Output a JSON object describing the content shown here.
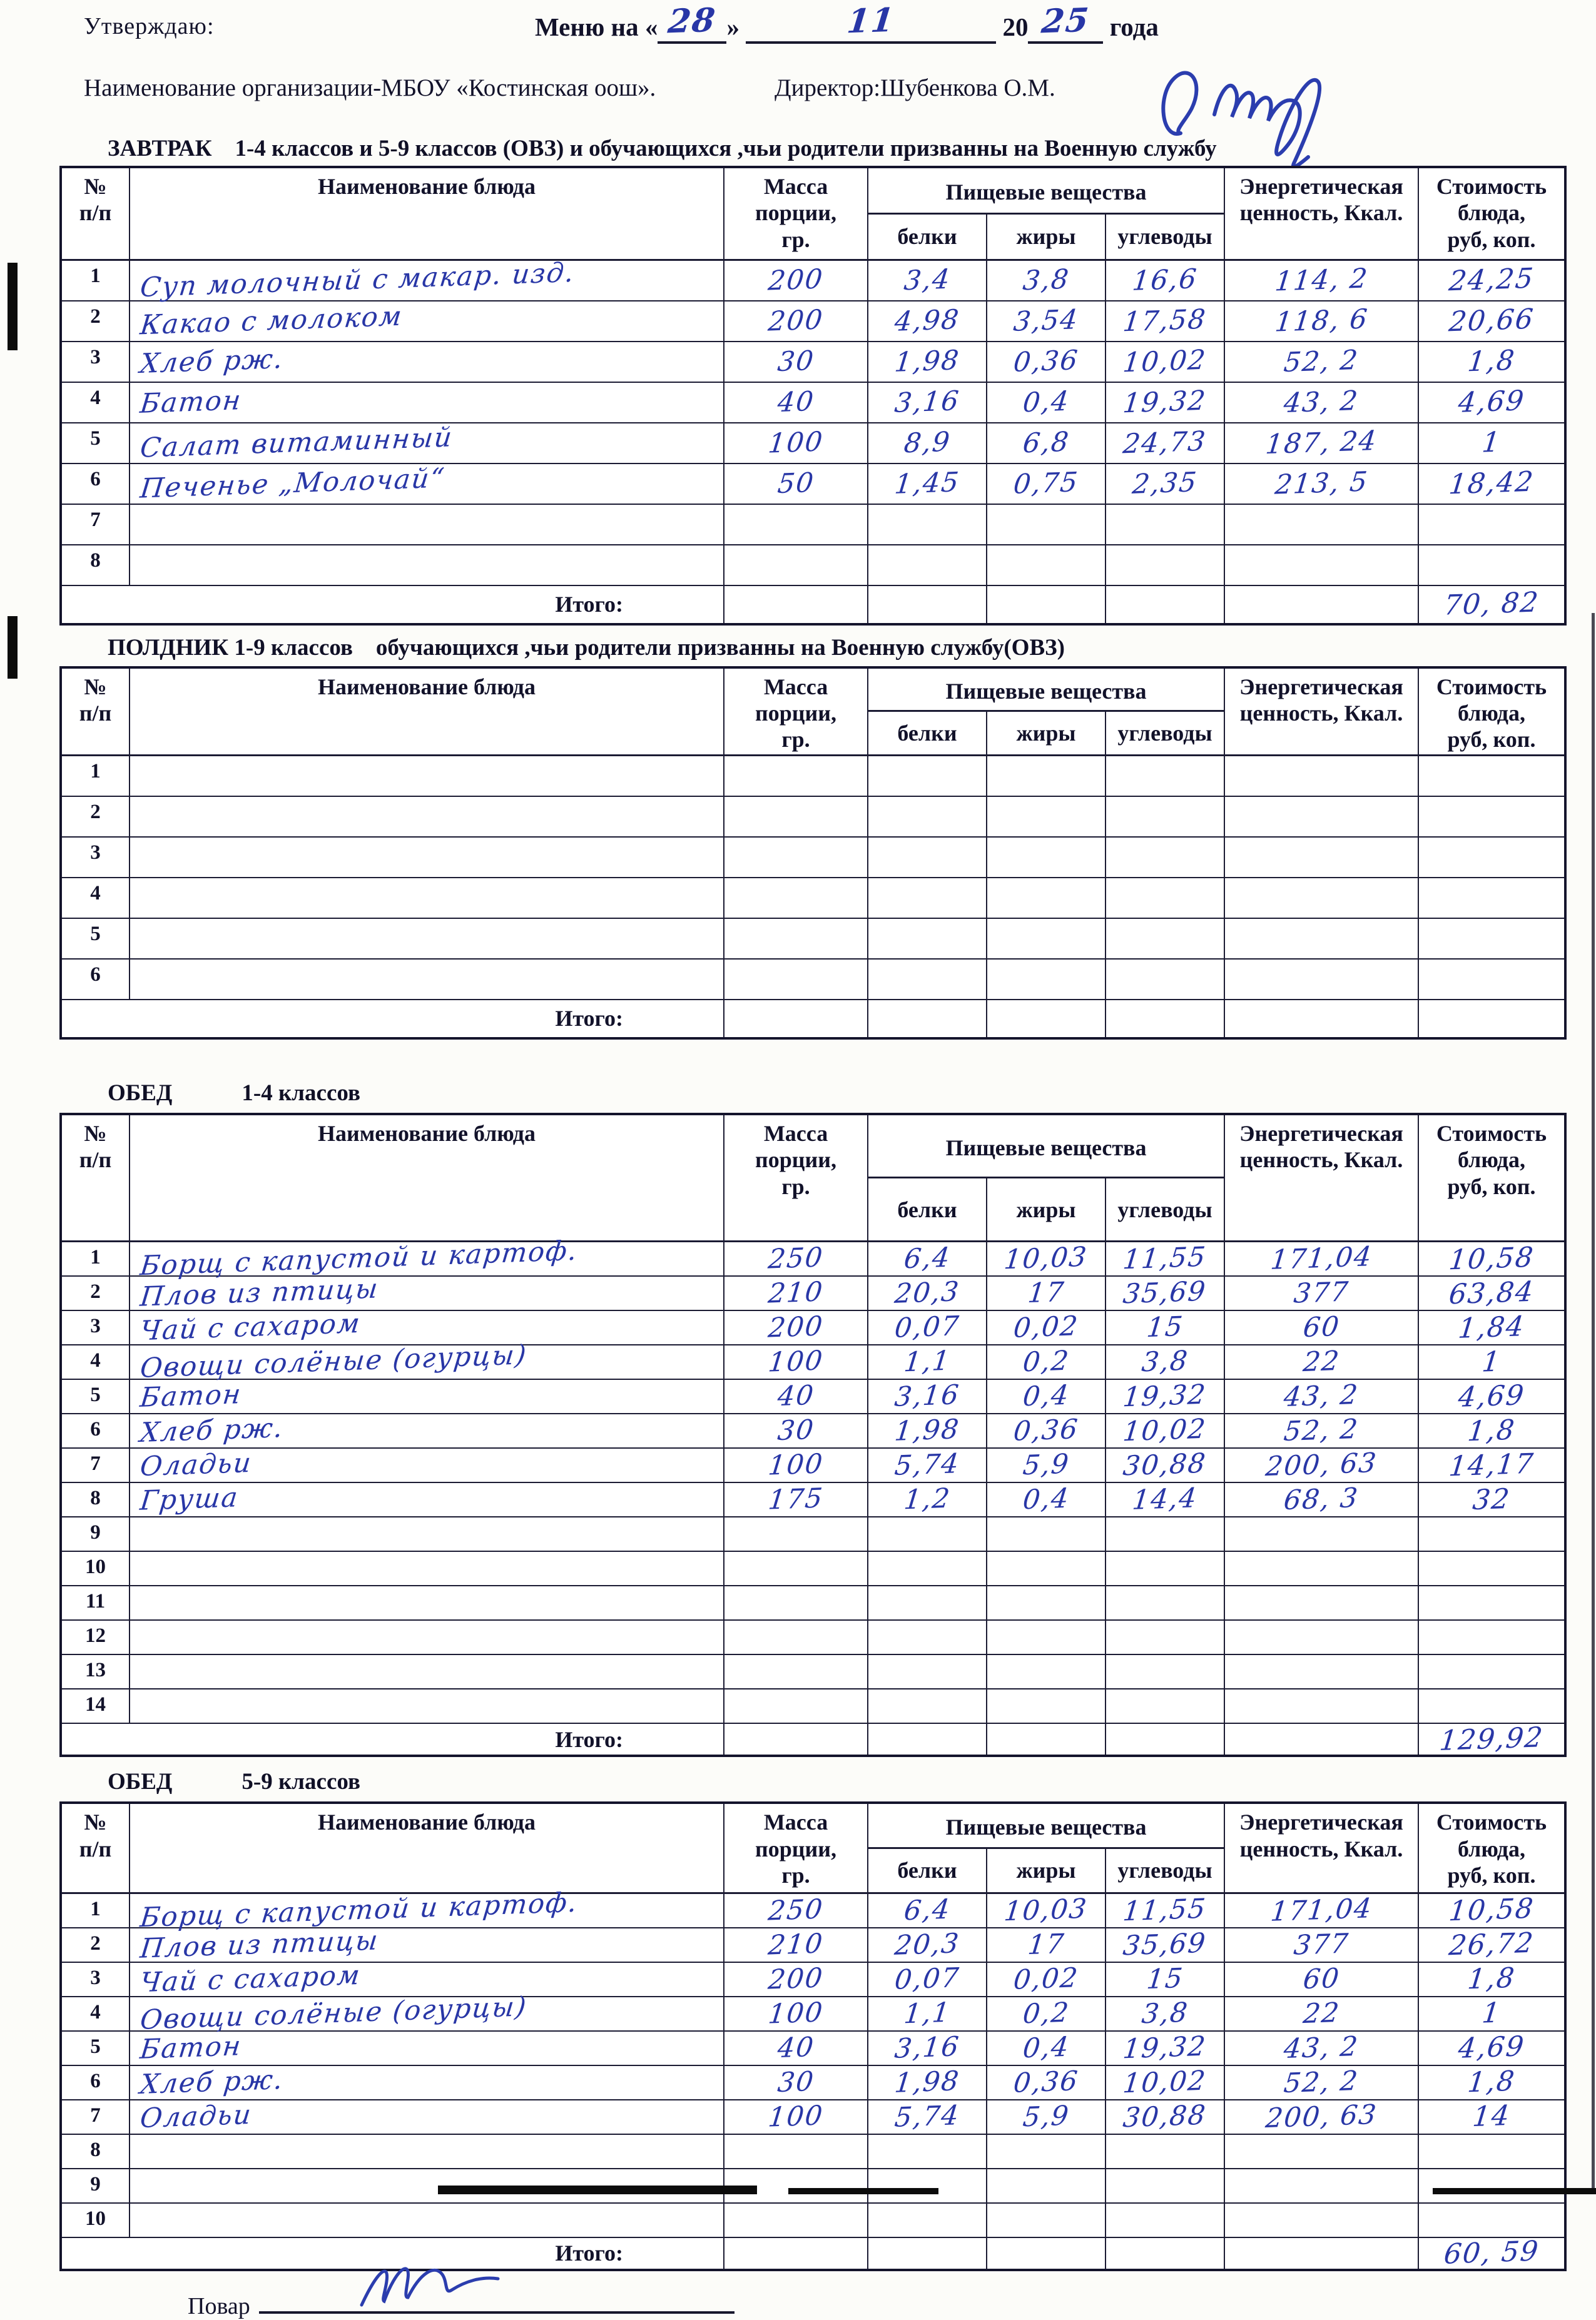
{
  "header": {
    "approve_label": "Утверждаю:",
    "menu": {
      "prefix": "Меню на",
      "open": "«",
      "day": "28",
      "close": "»",
      "month": "11",
      "year_prefix": "20",
      "year": "25",
      "suffix": "года"
    },
    "org_line": "Наименование организации-МБОУ «Костинская оош».",
    "director_label": "Директор:Шубенкова О.М."
  },
  "columns": {
    "num": "№\nп/п",
    "dish": "Наименование блюда",
    "mass": "Масса\nпорции,\nгр.",
    "nutrients": "Пищевые вещества",
    "protein": "белки",
    "fat": "жиры",
    "carbs": "углеводы",
    "energy": "Энергетическая\nценность, Ккал.",
    "cost": "Стоимость\nблюда,\nруб, коп."
  },
  "tables": [
    {
      "caption": "ЗАВТРАК    1-4 классов и 5-9 классов (ОВЗ) и обучающихся ,чьи родители призванны на Военную службу",
      "total_label": "Итого:",
      "total": "70, 82",
      "rows": [
        {
          "num": "1",
          "dish": "Суп молочный с макар. изд.",
          "mass": "200",
          "protein": "3,4",
          "fat": "3,8",
          "carbs": "16,6",
          "energy": "114, 2",
          "cost": "24,25"
        },
        {
          "num": "2",
          "dish": "Какао с молоком",
          "mass": "200",
          "protein": "4,98",
          "fat": "3,54",
          "carbs": "17,58",
          "energy": "118, 6",
          "cost": "20,66"
        },
        {
          "num": "3",
          "dish": "Хлеб рж.",
          "mass": "30",
          "protein": "1,98",
          "fat": "0,36",
          "carbs": "10,02",
          "energy": "52, 2",
          "cost": "1,8"
        },
        {
          "num": "4",
          "dish": "Батон",
          "mass": "40",
          "protein": "3,16",
          "fat": "0,4",
          "carbs": "19,32",
          "energy": "43, 2",
          "cost": "4,69"
        },
        {
          "num": "5",
          "dish": "Салат витаминный",
          "mass": "100",
          "protein": "8,9",
          "fat": "6,8",
          "carbs": "24,73",
          "energy": "187, 24",
          "cost": "1"
        },
        {
          "num": "6",
          "dish": "Печенье „Молочай“",
          "mass": "50",
          "protein": "1,45",
          "fat": "0,75",
          "carbs": "2,35",
          "energy": "213, 5",
          "cost": "18,42"
        },
        {
          "num": "7",
          "dish": "",
          "mass": "",
          "protein": "",
          "fat": "",
          "carbs": "",
          "energy": "",
          "cost": ""
        },
        {
          "num": "8",
          "dish": "",
          "mass": "",
          "protein": "",
          "fat": "",
          "carbs": "",
          "energy": "",
          "cost": ""
        }
      ]
    },
    {
      "caption": "ПОЛДНИК 1-9 классов    обучающихся ,чьи родители призванны на Военную службу(ОВЗ)",
      "total_label": "Итого:",
      "total": "",
      "rows": [
        {
          "num": "1",
          "dish": "",
          "mass": "",
          "protein": "",
          "fat": "",
          "carbs": "",
          "energy": "",
          "cost": ""
        },
        {
          "num": "2",
          "dish": "",
          "mass": "",
          "protein": "",
          "fat": "",
          "carbs": "",
          "energy": "",
          "cost": ""
        },
        {
          "num": "3",
          "dish": "",
          "mass": "",
          "protein": "",
          "fat": "",
          "carbs": "",
          "energy": "",
          "cost": ""
        },
        {
          "num": "4",
          "dish": "",
          "mass": "",
          "protein": "",
          "fat": "",
          "carbs": "",
          "energy": "",
          "cost": ""
        },
        {
          "num": "5",
          "dish": "",
          "mass": "",
          "protein": "",
          "fat": "",
          "carbs": "",
          "energy": "",
          "cost": ""
        },
        {
          "num": "6",
          "dish": "",
          "mass": "",
          "protein": "",
          "fat": "",
          "carbs": "",
          "energy": "",
          "cost": ""
        }
      ]
    },
    {
      "caption": "ОБЕД            1-4 классов",
      "total_label": "Итого:",
      "total": "129,92",
      "rows": [
        {
          "num": "1",
          "dish": "Борщ с капустой и картоф.",
          "mass": "250",
          "protein": "6,4",
          "fat": "10,03",
          "carbs": "11,55",
          "energy": "171,04",
          "cost": "10,58"
        },
        {
          "num": "2",
          "dish": "Плов из птицы",
          "mass": "210",
          "protein": "20,3",
          "fat": "17",
          "carbs": "35,69",
          "energy": "377",
          "cost": "63,84"
        },
        {
          "num": "3",
          "dish": "Чай с сахаром",
          "mass": "200",
          "protein": "0,07",
          "fat": "0,02",
          "carbs": "15",
          "energy": "60",
          "cost": "1,84"
        },
        {
          "num": "4",
          "dish": "Овощи солёные (огурцы)",
          "mass": "100",
          "protein": "1,1",
          "fat": "0,2",
          "carbs": "3,8",
          "energy": "22",
          "cost": "1"
        },
        {
          "num": "5",
          "dish": "Батон",
          "mass": "40",
          "protein": "3,16",
          "fat": "0,4",
          "carbs": "19,32",
          "energy": "43, 2",
          "cost": "4,69"
        },
        {
          "num": "6",
          "dish": "Хлеб рж.",
          "mass": "30",
          "protein": "1,98",
          "fat": "0,36",
          "carbs": "10,02",
          "energy": "52, 2",
          "cost": "1,8"
        },
        {
          "num": "7",
          "dish": "Оладьи",
          "mass": "100",
          "protein": "5,74",
          "fat": "5,9",
          "carbs": "30,88",
          "energy": "200, 63",
          "cost": "14,17"
        },
        {
          "num": "8",
          "dish": "Груша",
          "mass": "175",
          "protein": "1,2",
          "fat": "0,4",
          "carbs": "14,4",
          "energy": "68, 3",
          "cost": "32"
        },
        {
          "num": "9",
          "dish": "",
          "mass": "",
          "protein": "",
          "fat": "",
          "carbs": "",
          "energy": "",
          "cost": ""
        },
        {
          "num": "10",
          "dish": "",
          "mass": "",
          "protein": "",
          "fat": "",
          "carbs": "",
          "energy": "",
          "cost": ""
        },
        {
          "num": "11",
          "dish": "",
          "mass": "",
          "protein": "",
          "fat": "",
          "carbs": "",
          "energy": "",
          "cost": ""
        },
        {
          "num": "12",
          "dish": "",
          "mass": "",
          "protein": "",
          "fat": "",
          "carbs": "",
          "energy": "",
          "cost": ""
        },
        {
          "num": "13",
          "dish": "",
          "mass": "",
          "protein": "",
          "fat": "",
          "carbs": "",
          "energy": "",
          "cost": ""
        },
        {
          "num": "14",
          "dish": "",
          "mass": "",
          "protein": "",
          "fat": "",
          "carbs": "",
          "energy": "",
          "cost": ""
        }
      ]
    },
    {
      "caption": "ОБЕД            5-9 классов",
      "total_label": "Итого:",
      "total": "60, 59",
      "rows": [
        {
          "num": "1",
          "dish": "Борщ с капустой и картоф.",
          "mass": "250",
          "protein": "6,4",
          "fat": "10,03",
          "carbs": "11,55",
          "energy": "171,04",
          "cost": "10,58"
        },
        {
          "num": "2",
          "dish": "Плов из птицы",
          "mass": "210",
          "protein": "20,3",
          "fat": "17",
          "carbs": "35,69",
          "energy": "377",
          "cost": "26,72"
        },
        {
          "num": "3",
          "dish": "Чай с сахаром",
          "mass": "200",
          "protein": "0,07",
          "fat": "0,02",
          "carbs": "15",
          "energy": "60",
          "cost": "1,8"
        },
        {
          "num": "4",
          "dish": "Овощи солёные (огурцы)",
          "mass": "100",
          "protein": "1,1",
          "fat": "0,2",
          "carbs": "3,8",
          "energy": "22",
          "cost": "1"
        },
        {
          "num": "5",
          "dish": "Батон",
          "mass": "40",
          "protein": "3,16",
          "fat": "0,4",
          "carbs": "19,32",
          "energy": "43, 2",
          "cost": "4,69"
        },
        {
          "num": "6",
          "dish": "Хлеб рж.",
          "mass": "30",
          "protein": "1,98",
          "fat": "0,36",
          "carbs": "10,02",
          "energy": "52, 2",
          "cost": "1,8"
        },
        {
          "num": "7",
          "dish": "Оладьи",
          "mass": "100",
          "protein": "5,74",
          "fat": "5,9",
          "carbs": "30,88",
          "energy": "200, 63",
          "cost": "14"
        },
        {
          "num": "8",
          "dish": "",
          "mass": "",
          "protein": "",
          "fat": "",
          "carbs": "",
          "energy": "",
          "cost": ""
        },
        {
          "num": "9",
          "dish": "",
          "mass": "",
          "protein": "",
          "fat": "",
          "carbs": "",
          "energy": "",
          "cost": ""
        },
        {
          "num": "10",
          "dish": "",
          "mass": "",
          "protein": "",
          "fat": "",
          "carbs": "",
          "energy": "",
          "cost": ""
        }
      ]
    }
  ],
  "footer": {
    "cook_label": "Повар"
  },
  "ink_color": "#2836a6"
}
